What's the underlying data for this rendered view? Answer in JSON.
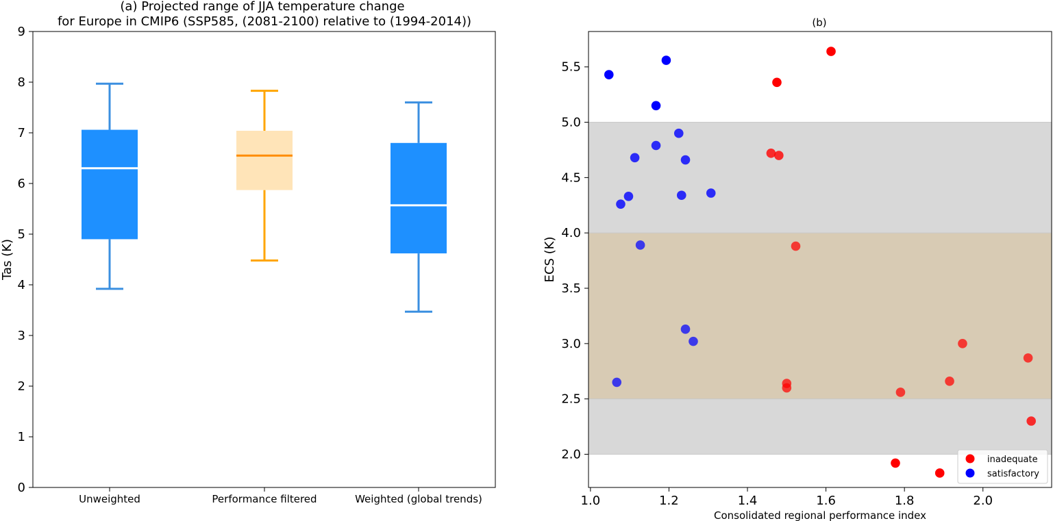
{
  "colors": {
    "blue_box": "#1e90ff",
    "blue_whisker": "#3b8fe0",
    "orange_box": "#ffe4b8",
    "orange_line": "#ffa500",
    "median_orange": "#ff8c00",
    "gray_band": "#d8d8d8",
    "tan_band": "#d8cbb4",
    "red": "#ff0000",
    "blue": "#0000ff"
  },
  "chart_data": [
    {
      "type": "box",
      "title_line1": "(a) Projected range of JJA temperature change",
      "title_line2": "for Europe in CMIP6 (SSP585, (2081-2100) relative to (1994-2014))",
      "ylabel": "Tas (K)",
      "xlabel": "",
      "ylim": [
        0,
        9
      ],
      "yticks": [
        "0",
        "1",
        "2",
        "3",
        "4",
        "5",
        "6",
        "7",
        "8",
        "9"
      ],
      "categories": [
        "Unweighted",
        "Performance filtered",
        "Weighted (global trends)"
      ],
      "boxes": [
        {
          "name": "Unweighted",
          "whislo": 3.92,
          "q1": 4.9,
          "med": 6.3,
          "q3": 7.06,
          "whishi": 7.97,
          "style": "blue"
        },
        {
          "name": "Performance filtered",
          "whislo": 4.48,
          "q1": 5.87,
          "med": 6.55,
          "q3": 7.04,
          "whishi": 7.83,
          "style": "orange"
        },
        {
          "name": "Weighted (global trends)",
          "whislo": 3.47,
          "q1": 4.62,
          "med": 5.57,
          "q3": 6.8,
          "whishi": 7.6,
          "style": "blue"
        }
      ]
    },
    {
      "type": "scatter",
      "title": "(b)",
      "xlabel": "Consolidated regional performance index",
      "ylabel": "ECS (K)",
      "xlim": [
        0.995,
        2.175
      ],
      "ylim": [
        1.7,
        5.82
      ],
      "xticks": [
        "1.0",
        "1.2",
        "1.4",
        "1.6",
        "1.8",
        "2.0"
      ],
      "yticks": [
        "2.0",
        "2.5",
        "3.0",
        "3.5",
        "4.0",
        "4.5",
        "5.0",
        "5.5"
      ],
      "bands": [
        {
          "y0": 2.0,
          "y1": 5.0,
          "color": "gray"
        },
        {
          "y0": 2.5,
          "y1": 4.0,
          "color": "tan"
        }
      ],
      "legend": [
        {
          "label": "inadequate",
          "color": "red"
        },
        {
          "label": "satisfactory",
          "color": "blue"
        }
      ],
      "series": [
        {
          "name": "inadequate",
          "points": [
            [
              1.613,
              5.64
            ],
            [
              1.475,
              5.36
            ],
            [
              1.46,
              4.72
            ],
            [
              1.48,
              4.7
            ],
            [
              1.523,
              3.88
            ],
            [
              1.5,
              2.64
            ],
            [
              1.5,
              2.6
            ],
            [
              1.79,
              2.56
            ],
            [
              1.948,
              3.0
            ],
            [
              1.915,
              2.66
            ],
            [
              2.115,
              2.87
            ],
            [
              2.123,
              2.3
            ],
            [
              1.777,
              1.92
            ],
            [
              1.89,
              1.83
            ]
          ]
        },
        {
          "name": "satisfactory",
          "points": [
            [
              1.047,
              5.43
            ],
            [
              1.193,
              5.56
            ],
            [
              1.167,
              5.15
            ],
            [
              1.225,
              4.9
            ],
            [
              1.167,
              4.79
            ],
            [
              1.113,
              4.68
            ],
            [
              1.242,
              4.66
            ],
            [
              1.097,
              4.33
            ],
            [
              1.077,
              4.26
            ],
            [
              1.232,
              4.34
            ],
            [
              1.307,
              4.36
            ],
            [
              1.127,
              3.89
            ],
            [
              1.242,
              3.13
            ],
            [
              1.262,
              3.02
            ],
            [
              1.067,
              2.65
            ]
          ]
        }
      ]
    }
  ]
}
